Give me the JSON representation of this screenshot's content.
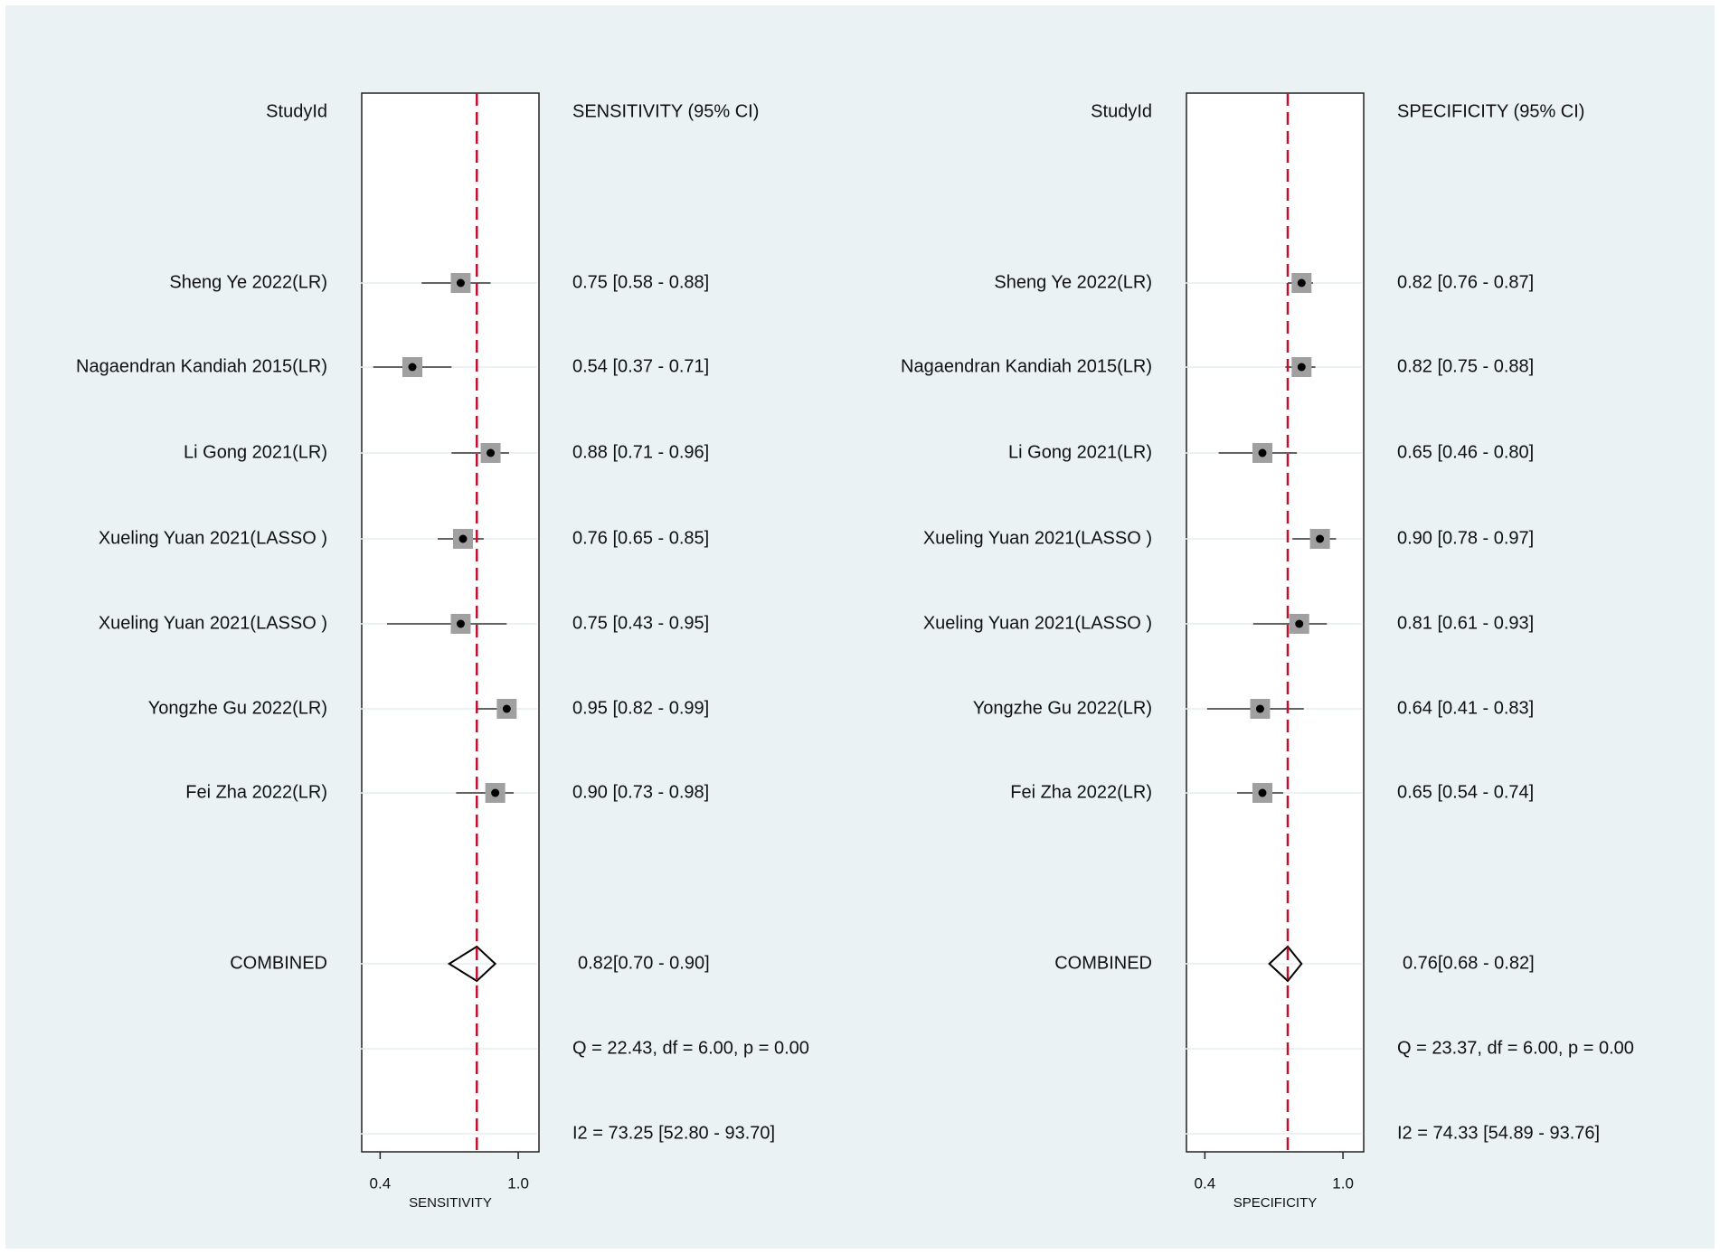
{
  "chart_data": [
    {
      "type": "forest",
      "study_header": "StudyId",
      "ci_header": "SENSITIVITY (95% CI)",
      "xlabel": "SENSITIVITY",
      "categories": [
        "Sheng Ye 2022(LR)",
        "Nagaendran Kandiah 2015(LR)",
        "Li Gong 2021(LR)",
        "Xueling Yuan 2021(LASSO )",
        "Xueling Yuan 2021(LASSO )",
        "Yongzhe Gu 2022(LR)",
        "Fei Zha 2022(LR)"
      ],
      "values": [
        0.75,
        0.54,
        0.88,
        0.76,
        0.75,
        0.95,
        0.9
      ],
      "lower": [
        0.58,
        0.37,
        0.71,
        0.65,
        0.43,
        0.82,
        0.73
      ],
      "upper": [
        0.88,
        0.71,
        0.96,
        0.85,
        0.95,
        0.99,
        0.98
      ],
      "value_labels": [
        "0.75 [0.58 - 0.88]",
        "0.54 [0.37 - 0.71]",
        "0.88 [0.71 - 0.96]",
        "0.76 [0.65 - 0.85]",
        "0.75 [0.43 - 0.95]",
        "0.95 [0.82 - 0.99]",
        "0.90 [0.73 - 0.98]"
      ],
      "combined": {
        "name": "COMBINED",
        "value": 0.82,
        "lower": 0.7,
        "upper": 0.9,
        "label": "0.82[0.70 - 0.90]"
      },
      "annotations": [
        "Q = 22.43, df = 6.00, p =  0.00",
        "I2 = 73.25 [52.80 - 93.70]"
      ],
      "xlim": [
        0.32,
        1.09
      ],
      "xticks": [
        0.4,
        {
          "value": 1,
          "label": "1.0"
        }
      ],
      "color": "#a0a0a0",
      "reference_line_color": "#c0102c"
    },
    {
      "type": "forest",
      "study_header": "StudyId",
      "ci_header": "SPECIFICITY (95% CI)",
      "xlabel": "SPECIFICITY",
      "categories": [
        "Sheng Ye 2022(LR)",
        "Nagaendran Kandiah 2015(LR)",
        "Li Gong 2021(LR)",
        "Xueling Yuan 2021(LASSO )",
        "Xueling Yuan 2021(LASSO )",
        "Yongzhe Gu 2022(LR)",
        "Fei Zha 2022(LR)"
      ],
      "values": [
        0.82,
        0.82,
        0.65,
        0.9,
        0.81,
        0.64,
        0.65
      ],
      "lower": [
        0.76,
        0.75,
        0.46,
        0.78,
        0.61,
        0.41,
        0.54
      ],
      "upper": [
        0.87,
        0.88,
        0.8,
        0.97,
        0.93,
        0.83,
        0.74
      ],
      "value_labels": [
        "0.82 [0.76 - 0.87]",
        "0.82 [0.75 - 0.88]",
        "0.65 [0.46 - 0.80]",
        "0.90 [0.78 - 0.97]",
        "0.81 [0.61 - 0.93]",
        "0.64 [0.41 - 0.83]",
        "0.65 [0.54 - 0.74]"
      ],
      "combined": {
        "name": "COMBINED",
        "value": 0.76,
        "lower": 0.68,
        "upper": 0.82,
        "label": "0.76[0.68 - 0.82]"
      },
      "annotations": [
        "Q = 23.37, df = 6.00, p =  0.00",
        "I2 = 74.33 [54.89 - 93.76]"
      ],
      "xlim": [
        0.32,
        1.09
      ],
      "xticks": [
        0.4,
        {
          "value": 1,
          "label": "1.0"
        }
      ],
      "color": "#a0a0a0",
      "reference_line_color": "#c0102c"
    }
  ]
}
